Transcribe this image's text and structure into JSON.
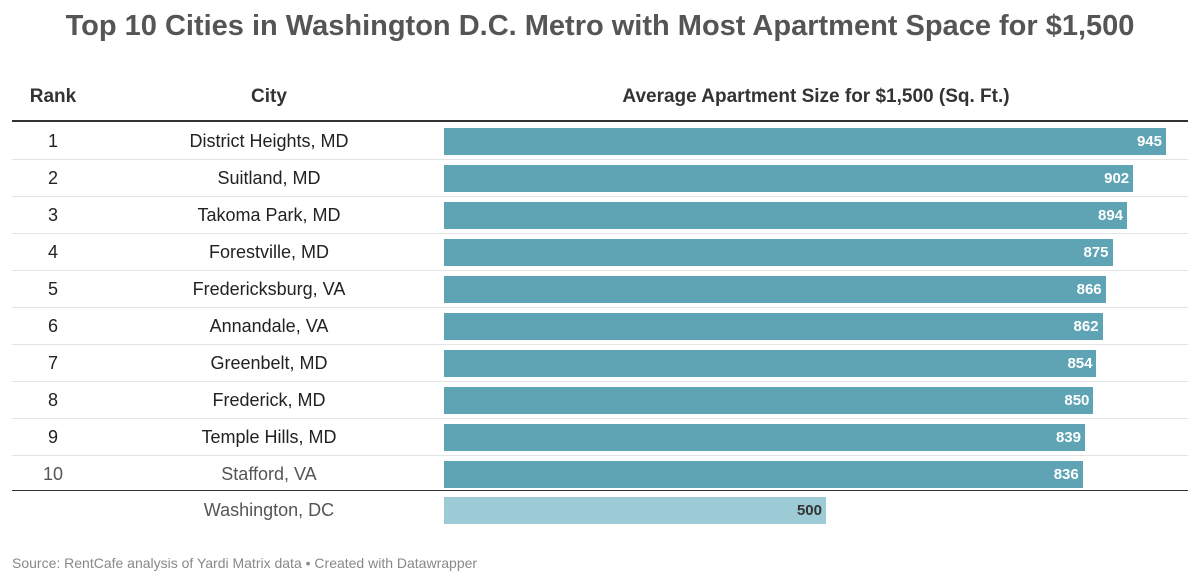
{
  "title": "Top 10 Cities in Washington D.C. Metro with Most Apartment Space for $1,500",
  "columns": {
    "rank": "Rank",
    "city": "City",
    "value": "Average Apartment Size for $1,500 (Sq. Ft.)"
  },
  "source": "Source: RentCafe analysis of Yardi Matrix data • Created with Datawrapper",
  "colors": {
    "bar": "#5ea4b4",
    "highlight_bar": "#9ccbd6",
    "title": "#555555"
  },
  "chart_data": {
    "type": "table",
    "max_value": 945,
    "rows": [
      {
        "rank": "1",
        "city": "District Heights, MD",
        "value": 945
      },
      {
        "rank": "2",
        "city": "Suitland, MD",
        "value": 902
      },
      {
        "rank": "3",
        "city": "Takoma Park, MD",
        "value": 894
      },
      {
        "rank": "4",
        "city": "Forestville, MD",
        "value": 875
      },
      {
        "rank": "5",
        "city": "Fredericksburg, VA",
        "value": 866
      },
      {
        "rank": "6",
        "city": "Annandale, VA",
        "value": 862
      },
      {
        "rank": "7",
        "city": "Greenbelt, MD",
        "value": 854
      },
      {
        "rank": "8",
        "city": "Frederick, MD",
        "value": 850
      },
      {
        "rank": "9",
        "city": "Temple Hills, MD",
        "value": 839
      },
      {
        "rank": "10",
        "city": "Stafford, VA",
        "value": 836
      }
    ],
    "reference": {
      "rank": "",
      "city": "Washington, DC",
      "value": 500
    }
  }
}
